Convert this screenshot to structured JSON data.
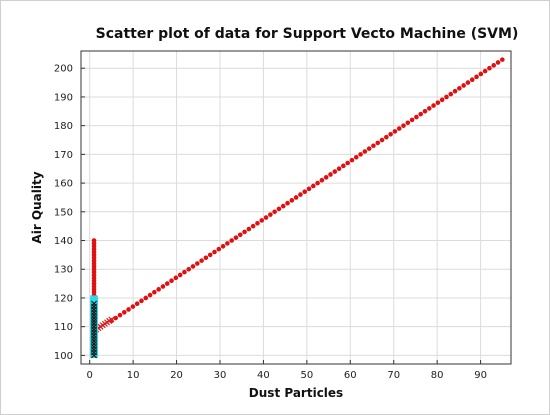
{
  "chart_data": {
    "type": "scatter",
    "title": "Scatter plot of data for Support Vecto Machine (SVM)",
    "xlabel": "Dust Particles",
    "ylabel": "Air Quality",
    "xlim": [
      -2,
      97
    ],
    "ylim": [
      97,
      206
    ],
    "xticks": [
      0,
      10,
      20,
      30,
      40,
      50,
      60,
      70,
      80,
      90
    ],
    "yticks": [
      100,
      110,
      120,
      130,
      140,
      150,
      160,
      170,
      180,
      190,
      200
    ],
    "grid": true,
    "legend": "none",
    "series": [
      {
        "marker": "dot",
        "color": "#e01010",
        "segments": [
          {
            "x_start": 1,
            "x_end": 1,
            "y_start": 100,
            "y_end": 140,
            "step": 1
          },
          {
            "x_start": 5,
            "x_end": 95,
            "y_start": 112,
            "y_end": 203,
            "step": 1
          }
        ]
      },
      {
        "marker": "x",
        "color": "#d42020",
        "segments": [
          {
            "x_start": 1.5,
            "x_end": 5,
            "y_start": 109,
            "y_end": 112.5,
            "step": 0.5
          }
        ]
      },
      {
        "marker": "square",
        "color": "#2fd8e6",
        "segments": [
          {
            "x_start": 0.7,
            "x_end": 0.7,
            "y_start": 100,
            "y_end": 120,
            "step": 0.5
          },
          {
            "x_start": 1.3,
            "x_end": 1.3,
            "y_start": 100,
            "y_end": 120,
            "step": 0.5
          }
        ]
      },
      {
        "marker": "x",
        "color": "#1a1a1a",
        "segments": [
          {
            "x_start": 1,
            "x_end": 1,
            "y_start": 100,
            "y_end": 118,
            "step": 1
          }
        ]
      }
    ]
  }
}
